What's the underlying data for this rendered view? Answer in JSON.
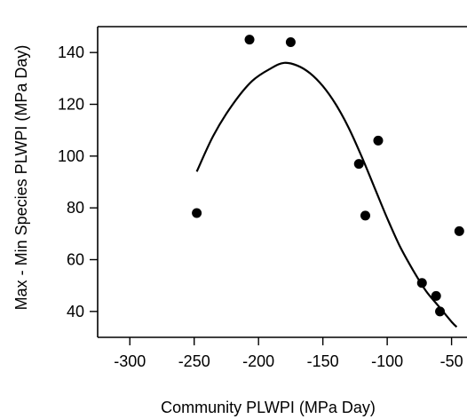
{
  "chart_data": {
    "type": "scatter",
    "title": "",
    "xlabel": "Community PLWPI (MPa Day)",
    "ylabel": "Max - Min Species PLWPI (MPa Day)",
    "xlim": [
      -325,
      -38
    ],
    "ylim": [
      30,
      150
    ],
    "xticks": [
      -300,
      -250,
      -200,
      -150,
      -100,
      -50
    ],
    "yticks": [
      40,
      60,
      80,
      100,
      120,
      140
    ],
    "grid": false,
    "points": [
      {
        "x": -248,
        "y": 78
      },
      {
        "x": -207,
        "y": 145
      },
      {
        "x": -175,
        "y": 144
      },
      {
        "x": -122,
        "y": 97
      },
      {
        "x": -117,
        "y": 77
      },
      {
        "x": -107,
        "y": 106
      },
      {
        "x": -73,
        "y": 51
      },
      {
        "x": -62,
        "y": 46
      },
      {
        "x": -59,
        "y": 40
      },
      {
        "x": -44,
        "y": 71
      }
    ],
    "fit_line": {
      "x": [
        -248,
        -235,
        -220,
        -205,
        -190,
        -180,
        -170,
        -160,
        -150,
        -140,
        -130,
        -120,
        -110,
        -100,
        -90,
        -80,
        -70,
        -60,
        -50,
        -46
      ],
      "y": [
        94,
        108,
        120,
        129,
        134,
        136,
        135,
        132,
        127,
        120,
        111,
        100,
        88,
        76,
        65,
        56,
        48,
        42,
        36,
        34
      ]
    }
  }
}
